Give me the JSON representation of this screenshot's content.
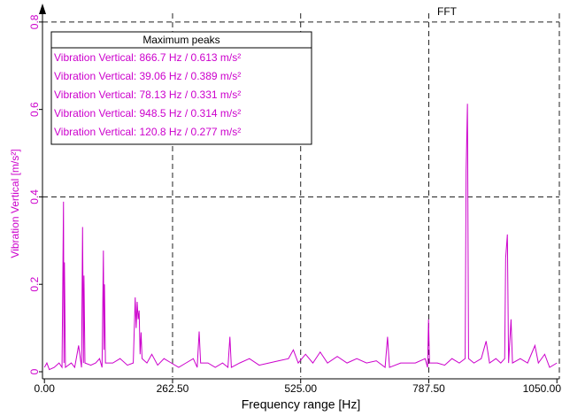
{
  "chart_data": {
    "type": "line",
    "title": "FFT",
    "xlabel": "Frequency range [Hz]",
    "ylabel": "Vibration Vertical [m/s²]",
    "legend_title": "Maximum peaks",
    "legend_entries": [
      "Vibration Vertical: 866.7 Hz / 0.613 m/s²",
      "Vibration Vertical: 39.06 Hz / 0.389 m/s²",
      "Vibration Vertical: 78.13 Hz / 0.331 m/s²",
      "Vibration Vertical: 948.5 Hz / 0.314 m/s²",
      "Vibration Vertical: 120.8 Hz / 0.277 m/s²"
    ],
    "color": "#cc00cc",
    "xlim": [
      -4,
      1055
    ],
    "ylim": [
      0,
      0.82
    ],
    "xticks": [
      {
        "value": 0,
        "label": "0.00"
      },
      {
        "value": 262.5,
        "label": "262.50"
      },
      {
        "value": 525,
        "label": "525.00"
      },
      {
        "value": 787.5,
        "label": "787.50"
      },
      {
        "value": 1050,
        "label": "1050.00"
      }
    ],
    "yticks": [
      0,
      0.2,
      0.4,
      0.6,
      0.8
    ],
    "xgrid": [
      262.5,
      525,
      787.5
    ],
    "ygrid": [
      0.4,
      0.8
    ],
    "x": [
      0,
      5,
      10,
      20,
      30,
      36,
      39.06,
      40,
      41,
      43,
      55,
      62,
      70,
      76,
      78.13,
      80,
      81,
      83,
      95,
      105,
      113,
      118,
      120.8,
      122,
      123,
      125,
      140,
      155,
      170,
      182,
      186,
      188,
      190,
      192,
      194,
      196,
      198,
      200,
      210,
      220,
      232,
      245,
      260,
      275,
      290,
      305,
      313,
      317,
      320,
      335,
      350,
      365,
      376,
      380,
      383,
      400,
      420,
      440,
      460,
      480,
      500,
      510,
      520,
      535,
      550,
      565,
      580,
      600,
      620,
      640,
      660,
      680,
      698,
      703,
      707,
      730,
      760,
      780,
      785,
      787,
      789,
      805,
      820,
      835,
      850,
      862,
      864,
      866.7,
      869,
      880,
      895,
      905,
      912,
      925,
      935,
      943,
      945,
      948.5,
      951,
      956,
      959,
      975,
      990,
      1005,
      1012,
      1025,
      1035,
      1050
    ],
    "values": [
      0.01,
      0.02,
      0.005,
      0.01,
      0.02,
      0.01,
      0.389,
      0.02,
      0.25,
      0.01,
      0.02,
      0.01,
      0.06,
      0.01,
      0.331,
      0.02,
      0.22,
      0.02,
      0.015,
      0.02,
      0.03,
      0.01,
      0.277,
      0.05,
      0.2,
      0.02,
      0.02,
      0.03,
      0.015,
      0.02,
      0.17,
      0.1,
      0.16,
      0.12,
      0.14,
      0.04,
      0.09,
      0.03,
      0.02,
      0.04,
      0.015,
      0.03,
      0.02,
      0.01,
      0.02,
      0.03,
      0.01,
      0.092,
      0.02,
      0.02,
      0.01,
      0.02,
      0.01,
      0.08,
      0.01,
      0.02,
      0.03,
      0.015,
      0.02,
      0.025,
      0.03,
      0.05,
      0.02,
      0.04,
      0.02,
      0.045,
      0.02,
      0.035,
      0.02,
      0.03,
      0.02,
      0.025,
      0.01,
      0.08,
      0.01,
      0.02,
      0.02,
      0.03,
      0.01,
      0.12,
      0.02,
      0.02,
      0.015,
      0.03,
      0.02,
      0.03,
      0.46,
      0.613,
      0.03,
      0.02,
      0.03,
      0.07,
      0.02,
      0.03,
      0.02,
      0.03,
      0.26,
      0.314,
      0.02,
      0.12,
      0.02,
      0.03,
      0.02,
      0.06,
      0.02,
      0.04,
      0.01,
      0.02
    ]
  }
}
